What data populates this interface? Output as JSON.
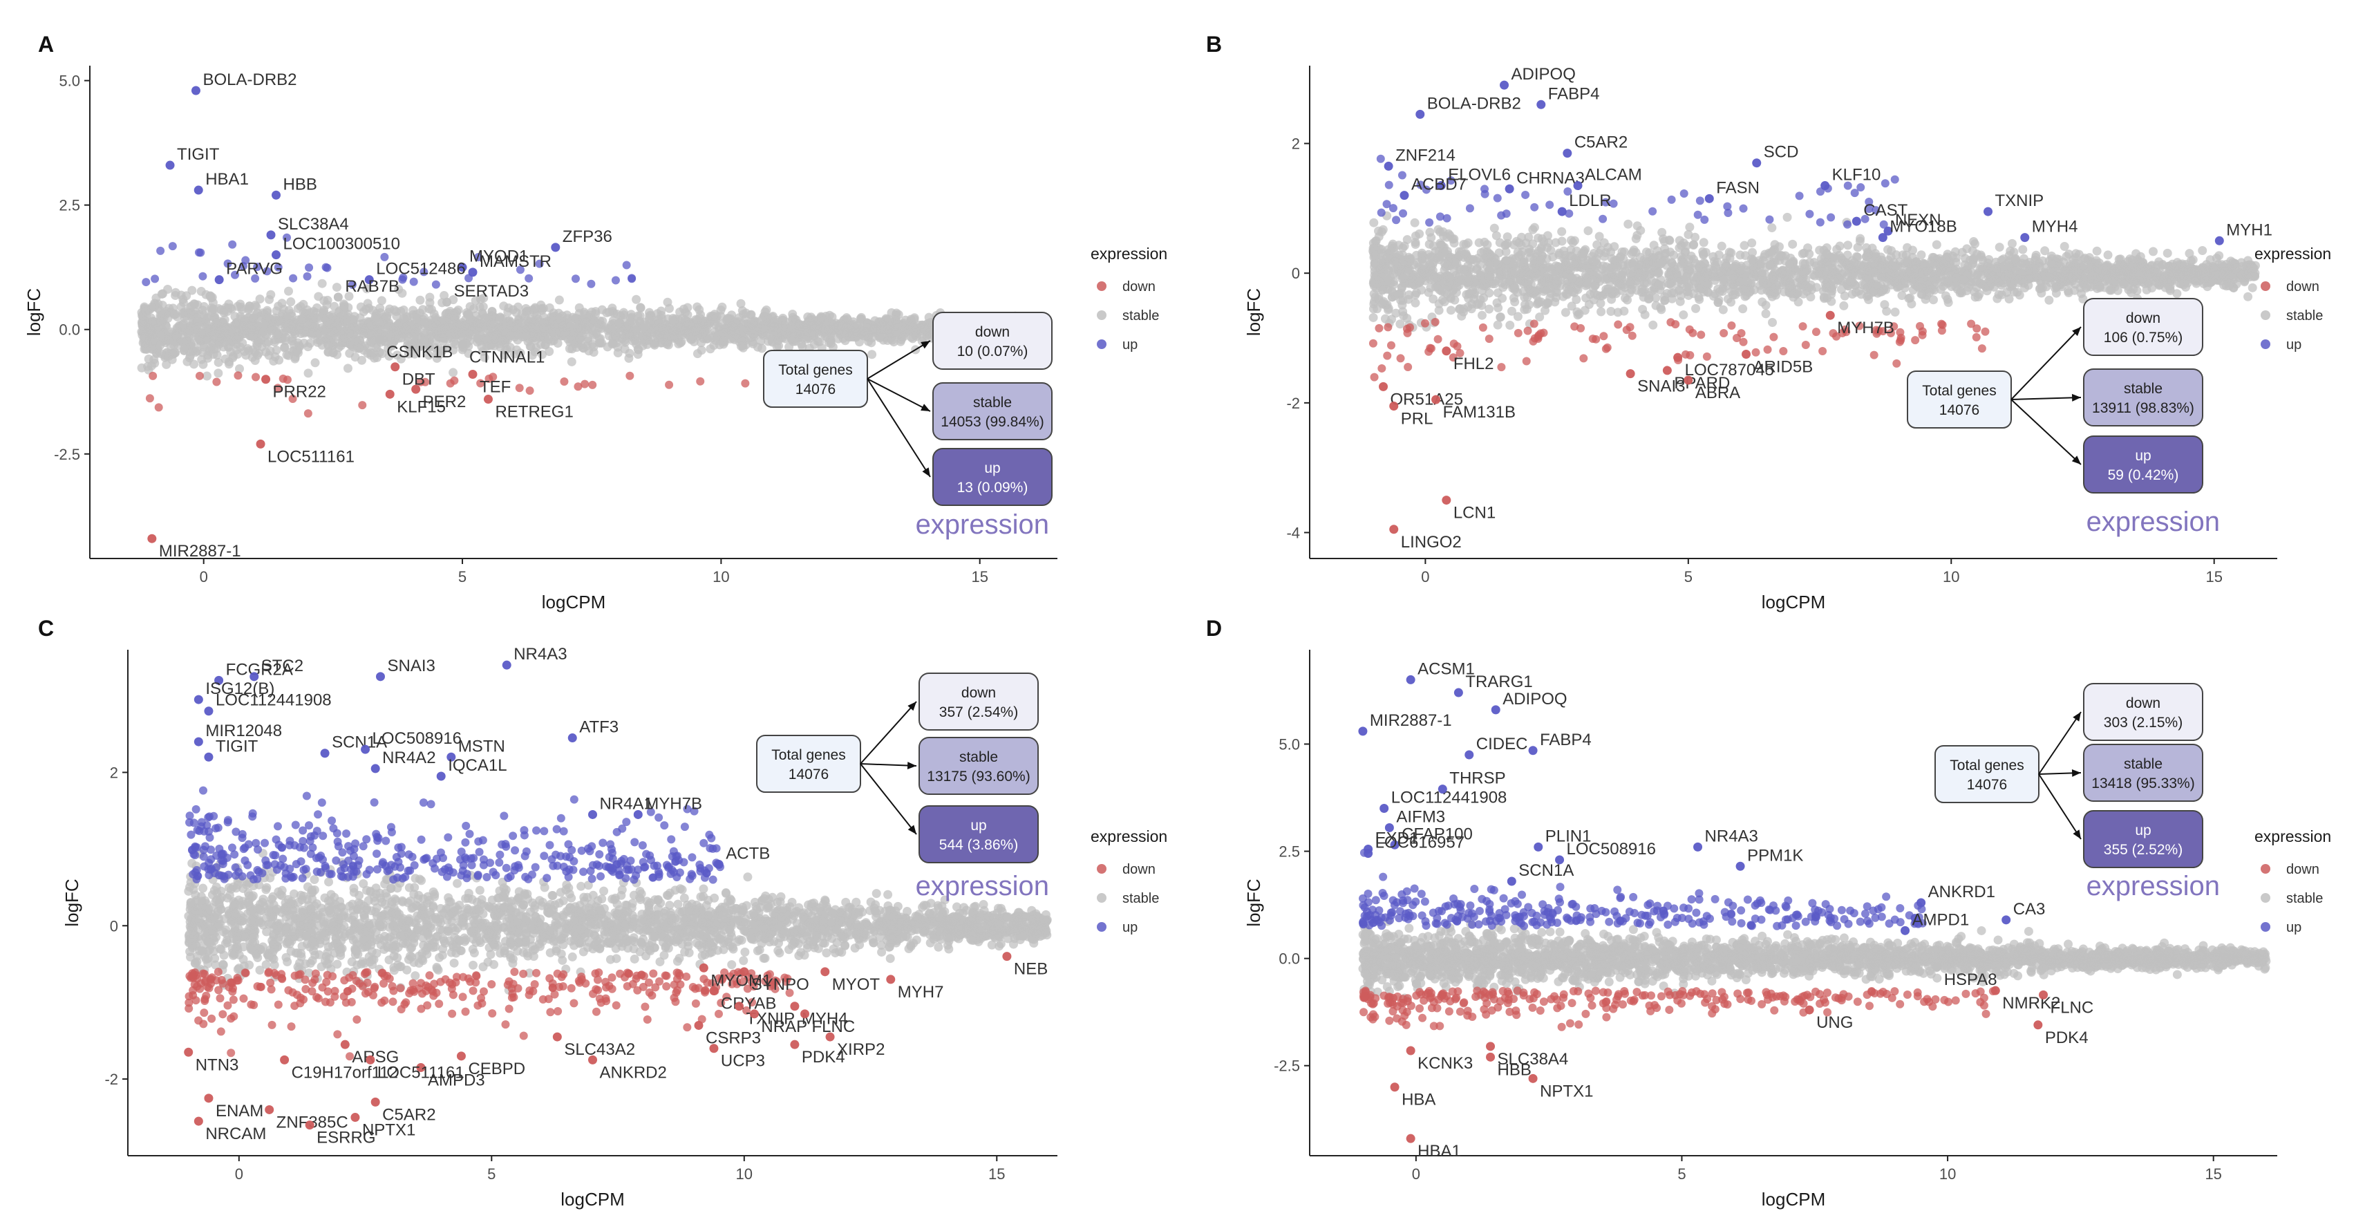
{
  "chart_data": [
    {
      "panel": "A",
      "type": "scatter",
      "xlabel": "logCPM",
      "ylabel": "logFC",
      "xticks": [
        0,
        5,
        10,
        15
      ],
      "yticks": [
        -2.5,
        0.0,
        2.5,
        5.0
      ],
      "ytick_labels": [
        "-2.5",
        "0.0",
        "2.5",
        "5.0"
      ],
      "xlim": [
        -2.2,
        16.5
      ],
      "ylim": [
        -4.6,
        5.3
      ],
      "cloud": {
        "x_min": -1.2,
        "x_max": 16,
        "up_thr": 0.9,
        "down_thr": -0.9,
        "n_up": 40,
        "n_down": 30
      },
      "genes": [
        {
          "name": "BOLA-DRB2",
          "x": -0.15,
          "y": 4.8,
          "dir": "up"
        },
        {
          "name": "TIGIT",
          "x": -0.65,
          "y": 3.3,
          "dir": "up"
        },
        {
          "name": "HBB",
          "x": 1.4,
          "y": 2.7,
          "dir": "up"
        },
        {
          "name": "HBA1",
          "x": -0.1,
          "y": 2.8,
          "dir": "up"
        },
        {
          "name": "SLC38A4",
          "x": 1.3,
          "y": 1.9,
          "dir": "up"
        },
        {
          "name": "LOC100300510",
          "x": 1.4,
          "y": 1.5,
          "dir": "up"
        },
        {
          "name": "MYOD1",
          "x": 5.0,
          "y": 1.25,
          "dir": "up"
        },
        {
          "name": "ZFP36",
          "x": 6.8,
          "y": 1.65,
          "dir": "up"
        },
        {
          "name": "PARVG",
          "x": 0.3,
          "y": 1.0,
          "dir": "up"
        },
        {
          "name": "LOC512486",
          "x": 3.2,
          "y": 1.0,
          "dir": "up"
        },
        {
          "name": "MAMSTR",
          "x": 5.2,
          "y": 1.15,
          "dir": "up"
        },
        {
          "name": "RAB7B",
          "x": 2.6,
          "y": 0.65,
          "dir": "stable"
        },
        {
          "name": "SERTAD3",
          "x": 4.7,
          "y": 0.55,
          "dir": "stable"
        },
        {
          "name": "CSNK1B",
          "x": 3.4,
          "y": -0.2,
          "dir": "stable"
        },
        {
          "name": "CTNNAL1",
          "x": 5.0,
          "y": -0.3,
          "dir": "stable"
        },
        {
          "name": "DBT",
          "x": 3.7,
          "y": -0.75,
          "dir": "down"
        },
        {
          "name": "TEF",
          "x": 5.2,
          "y": -0.9,
          "dir": "down"
        },
        {
          "name": "PRR22",
          "x": 1.2,
          "y": -1.0,
          "dir": "down"
        },
        {
          "name": "KLF15",
          "x": 3.6,
          "y": -1.3,
          "dir": "down"
        },
        {
          "name": "PER2",
          "x": 4.1,
          "y": -1.2,
          "dir": "down"
        },
        {
          "name": "RETREG1",
          "x": 5.5,
          "y": -1.4,
          "dir": "down"
        },
        {
          "name": "LOC511161",
          "x": 1.1,
          "y": -2.3,
          "dir": "down"
        },
        {
          "name": "MIR2887-1",
          "x": -1.0,
          "y": -4.2,
          "dir": "down"
        }
      ],
      "total_label": "Total genes",
      "total": "14076",
      "boxes": [
        {
          "label": "down",
          "value": "10 (0.07%)"
        },
        {
          "label": "stable",
          "value": "14053 (99.84%)"
        },
        {
          "label": "up",
          "value": "13 (0.09%)"
        }
      ],
      "caption": "expression"
    },
    {
      "panel": "B",
      "type": "scatter",
      "xlabel": "logCPM",
      "ylabel": "logFC",
      "xticks": [
        0,
        5,
        10,
        15
      ],
      "yticks": [
        -4,
        -2,
        0,
        2
      ],
      "ytick_labels": [
        "-4",
        "-2",
        "0",
        "2"
      ],
      "xlim": [
        -2.2,
        16.2
      ],
      "ylim": [
        -4.4,
        3.2
      ],
      "cloud": {
        "x_min": -1.0,
        "x_max": 15.8,
        "up_thr": 0.75,
        "down_thr": -0.75,
        "n_up": 55,
        "n_down": 100
      },
      "genes": [
        {
          "name": "ADIPOQ",
          "x": 1.5,
          "y": 2.9,
          "dir": "up"
        },
        {
          "name": "BOLA-DRB2",
          "x": -0.1,
          "y": 2.45,
          "dir": "up"
        },
        {
          "name": "FABP4",
          "x": 2.2,
          "y": 2.6,
          "dir": "up"
        },
        {
          "name": "C5AR2",
          "x": 2.7,
          "y": 1.85,
          "dir": "up"
        },
        {
          "name": "ZNF214",
          "x": -0.7,
          "y": 1.65,
          "dir": "up"
        },
        {
          "name": "ELOVL6",
          "x": 0.3,
          "y": 1.35,
          "dir": "up"
        },
        {
          "name": "CHRNA3",
          "x": 1.6,
          "y": 1.3,
          "dir": "up"
        },
        {
          "name": "ACBD7",
          "x": -0.4,
          "y": 1.2,
          "dir": "up"
        },
        {
          "name": "ALCAM",
          "x": 2.9,
          "y": 1.35,
          "dir": "up"
        },
        {
          "name": "SCD",
          "x": 6.3,
          "y": 1.7,
          "dir": "up"
        },
        {
          "name": "FASN",
          "x": 5.4,
          "y": 1.15,
          "dir": "up"
        },
        {
          "name": "KLF10",
          "x": 7.6,
          "y": 1.35,
          "dir": "up"
        },
        {
          "name": "LDLR",
          "x": 2.6,
          "y": 0.95,
          "dir": "up"
        },
        {
          "name": "CAST",
          "x": 8.2,
          "y": 0.8,
          "dir": "up"
        },
        {
          "name": "NEXN",
          "x": 8.8,
          "y": 0.65,
          "dir": "up"
        },
        {
          "name": "TXNIP",
          "x": 10.7,
          "y": 0.95,
          "dir": "up"
        },
        {
          "name": "MYO18B",
          "x": 8.7,
          "y": 0.55,
          "dir": "up"
        },
        {
          "name": "MYH4",
          "x": 11.4,
          "y": 0.55,
          "dir": "up"
        },
        {
          "name": "MYH1",
          "x": 15.1,
          "y": 0.5,
          "dir": "up"
        },
        {
          "name": "MYH7B",
          "x": 7.7,
          "y": -0.65,
          "dir": "down"
        },
        {
          "name": "FHL2",
          "x": 0.4,
          "y": -1.2,
          "dir": "down"
        },
        {
          "name": "LOC787045",
          "x": 4.8,
          "y": -1.3,
          "dir": "down"
        },
        {
          "name": "ARID5B",
          "x": 6.1,
          "y": -1.25,
          "dir": "down"
        },
        {
          "name": "SNAI3",
          "x": 3.9,
          "y": -1.55,
          "dir": "down"
        },
        {
          "name": "PPARD",
          "x": 4.6,
          "y": -1.5,
          "dir": "down"
        },
        {
          "name": "ABRA",
          "x": 5.0,
          "y": -1.65,
          "dir": "down"
        },
        {
          "name": "OR51A25",
          "x": -0.8,
          "y": -1.75,
          "dir": "down"
        },
        {
          "name": "FAM131B",
          "x": 0.2,
          "y": -1.95,
          "dir": "down"
        },
        {
          "name": "PRL",
          "x": -0.6,
          "y": -2.05,
          "dir": "down"
        },
        {
          "name": "LCN1",
          "x": 0.4,
          "y": -3.5,
          "dir": "down"
        },
        {
          "name": "LINGO2",
          "x": -0.6,
          "y": -3.95,
          "dir": "down"
        }
      ],
      "total_label": "Total genes",
      "total": "14076",
      "boxes": [
        {
          "label": "down",
          "value": "106 (0.75%)"
        },
        {
          "label": "stable",
          "value": "13911 (98.83%)"
        },
        {
          "label": "up",
          "value": "59 (0.42%)"
        }
      ],
      "caption": "expression"
    },
    {
      "panel": "C",
      "type": "scatter",
      "xlabel": "logCPM",
      "ylabel": "logFC",
      "xticks": [
        0,
        5,
        10,
        15
      ],
      "yticks": [
        -2,
        0,
        2
      ],
      "ytick_labels": [
        "-2",
        "0",
        "2"
      ],
      "xlim": [
        -2.2,
        16.2
      ],
      "ylim": [
        -3.0,
        3.6
      ],
      "cloud": {
        "x_min": -1.0,
        "x_max": 16,
        "up_thr": 0.6,
        "down_thr": -0.6,
        "n_up": 400,
        "n_down": 330
      },
      "genes": [
        {
          "name": "FCGR2A",
          "x": -0.4,
          "y": 3.2,
          "dir": "up"
        },
        {
          "name": "STC2",
          "x": 0.3,
          "y": 3.25,
          "dir": "up"
        },
        {
          "name": "SNAI3",
          "x": 2.8,
          "y": 3.25,
          "dir": "up"
        },
        {
          "name": "NR4A3",
          "x": 5.3,
          "y": 3.4,
          "dir": "up"
        },
        {
          "name": "ISG12(B)",
          "x": -0.8,
          "y": 2.95,
          "dir": "up"
        },
        {
          "name": "LOC112441908",
          "x": -0.6,
          "y": 2.8,
          "dir": "up"
        },
        {
          "name": "MIR12048",
          "x": -0.8,
          "y": 2.4,
          "dir": "up"
        },
        {
          "name": "TIGIT",
          "x": -0.6,
          "y": 2.2,
          "dir": "up"
        },
        {
          "name": "NR4A2",
          "x": 2.7,
          "y": 2.05,
          "dir": "up"
        },
        {
          "name": "ATF3",
          "x": 6.6,
          "y": 2.45,
          "dir": "up"
        },
        {
          "name": "SCN1A",
          "x": 1.7,
          "y": 2.25,
          "dir": "up"
        },
        {
          "name": "LOC508916",
          "x": 2.5,
          "y": 2.3,
          "dir": "up"
        },
        {
          "name": "MSTN",
          "x": 4.2,
          "y": 2.2,
          "dir": "up"
        },
        {
          "name": "IQCA1L",
          "x": 4.0,
          "y": 1.95,
          "dir": "up"
        },
        {
          "name": "MYH7B",
          "x": 7.9,
          "y": 1.45,
          "dir": "up"
        },
        {
          "name": "NR4A1",
          "x": 7.0,
          "y": 1.45,
          "dir": "up"
        },
        {
          "name": "ACTB",
          "x": 9.5,
          "y": 0.8,
          "dir": "up"
        },
        {
          "name": "MYOM1",
          "x": 9.2,
          "y": -0.55,
          "dir": "down"
        },
        {
          "name": "SYNPO",
          "x": 10.0,
          "y": -0.6,
          "dir": "down"
        },
        {
          "name": "NEB",
          "x": 15.2,
          "y": -0.4,
          "dir": "down"
        },
        {
          "name": "MYOT",
          "x": 11.6,
          "y": -0.6,
          "dir": "down"
        },
        {
          "name": "CRYAB",
          "x": 9.4,
          "y": -0.85,
          "dir": "down"
        },
        {
          "name": "TXNIP",
          "x": 9.9,
          "y": -1.05,
          "dir": "down"
        },
        {
          "name": "MYH7",
          "x": 12.9,
          "y": -0.7,
          "dir": "down"
        },
        {
          "name": "MYH4",
          "x": 11.0,
          "y": -1.05,
          "dir": "down"
        },
        {
          "name": "FLNC",
          "x": 11.2,
          "y": -1.15,
          "dir": "down"
        },
        {
          "name": "NRAP",
          "x": 10.2,
          "y": -1.15,
          "dir": "down"
        },
        {
          "name": "CSRP3",
          "x": 9.1,
          "y": -1.3,
          "dir": "down"
        },
        {
          "name": "XIRP2",
          "x": 11.7,
          "y": -1.45,
          "dir": "down"
        },
        {
          "name": "PDK4",
          "x": 11.0,
          "y": -1.55,
          "dir": "down"
        },
        {
          "name": "UCP3",
          "x": 9.4,
          "y": -1.6,
          "dir": "down"
        },
        {
          "name": "SLC43A2",
          "x": 6.3,
          "y": -1.45,
          "dir": "down"
        },
        {
          "name": "ANKRD2",
          "x": 7.0,
          "y": -1.75,
          "dir": "down"
        },
        {
          "name": "ARSG",
          "x": 2.1,
          "y": -1.55,
          "dir": "down"
        },
        {
          "name": "CEBPD",
          "x": 4.4,
          "y": -1.7,
          "dir": "down"
        },
        {
          "name": "AMPD3",
          "x": 3.6,
          "y": -1.85,
          "dir": "down"
        },
        {
          "name": "LOC511161",
          "x": 2.6,
          "y": -1.75,
          "dir": "down"
        },
        {
          "name": "C5AR2",
          "x": 2.7,
          "y": -2.3,
          "dir": "down"
        },
        {
          "name": "NPTX1",
          "x": 2.3,
          "y": -2.5,
          "dir": "down"
        },
        {
          "name": "NTN3",
          "x": -1.0,
          "y": -1.65,
          "dir": "down"
        },
        {
          "name": "C19H17orf112",
          "x": 0.9,
          "y": -1.75,
          "dir": "down"
        },
        {
          "name": "ENAM",
          "x": -0.6,
          "y": -2.25,
          "dir": "down"
        },
        {
          "name": "NRCAM",
          "x": -0.8,
          "y": -2.55,
          "dir": "down"
        },
        {
          "name": "ZNF385C",
          "x": 0.6,
          "y": -2.4,
          "dir": "down"
        },
        {
          "name": "ESRRG",
          "x": 1.4,
          "y": -2.6,
          "dir": "down"
        }
      ],
      "total_label": "Total genes",
      "total": "14076",
      "boxes": [
        {
          "label": "down",
          "value": "357 (2.54%)"
        },
        {
          "label": "stable",
          "value": "13175 (93.60%)"
        },
        {
          "label": "up",
          "value": "544 (3.86%)"
        }
      ],
      "caption": "expression"
    },
    {
      "panel": "D",
      "type": "scatter",
      "xlabel": "logCPM",
      "ylabel": "logFC",
      "xticks": [
        0,
        5,
        10,
        15
      ],
      "yticks": [
        -2.5,
        0.0,
        2.5,
        5.0
      ],
      "ytick_labels": [
        "-2.5",
        "0.0",
        "2.5",
        "5.0"
      ],
      "xlim": [
        -2.0,
        16.2
      ],
      "ylim": [
        -4.6,
        7.2
      ],
      "cloud": {
        "x_min": -1.0,
        "x_max": 16,
        "up_thr": 0.75,
        "down_thr": -0.75,
        "n_up": 300,
        "n_down": 260
      },
      "genes": [
        {
          "name": "ACSM1",
          "x": -0.1,
          "y": 6.5,
          "dir": "up"
        },
        {
          "name": "TRARG1",
          "x": 0.8,
          "y": 6.2,
          "dir": "up"
        },
        {
          "name": "ADIPOQ",
          "x": 1.5,
          "y": 5.8,
          "dir": "up"
        },
        {
          "name": "MIR2887-1",
          "x": -1.0,
          "y": 5.3,
          "dir": "up"
        },
        {
          "name": "FABP4",
          "x": 2.2,
          "y": 4.85,
          "dir": "up"
        },
        {
          "name": "CIDEC",
          "x": 1.0,
          "y": 4.75,
          "dir": "up"
        },
        {
          "name": "LOC112441908",
          "x": -0.6,
          "y": 3.5,
          "dir": "up"
        },
        {
          "name": "THRSP",
          "x": 0.5,
          "y": 3.95,
          "dir": "up"
        },
        {
          "name": "AIFM3",
          "x": -0.5,
          "y": 3.05,
          "dir": "up"
        },
        {
          "name": "EXD1",
          "x": -0.9,
          "y": 2.55,
          "dir": "up"
        },
        {
          "name": "CFAP100",
          "x": -0.4,
          "y": 2.65,
          "dir": "up"
        },
        {
          "name": "PLIN1",
          "x": 2.3,
          "y": 2.6,
          "dir": "up"
        },
        {
          "name": "NR4A3",
          "x": 5.3,
          "y": 2.6,
          "dir": "up"
        },
        {
          "name": "LOC508916",
          "x": 2.7,
          "y": 2.3,
          "dir": "up"
        },
        {
          "name": "PPM1K",
          "x": 6.1,
          "y": 2.15,
          "dir": "up"
        },
        {
          "name": "LOC616957",
          "x": -0.9,
          "y": 2.45,
          "dir": "up"
        },
        {
          "name": "SCN1A",
          "x": 1.8,
          "y": 1.8,
          "dir": "up"
        },
        {
          "name": "ANKRD1",
          "x": 9.5,
          "y": 1.3,
          "dir": "up"
        },
        {
          "name": "AMPD1",
          "x": 9.2,
          "y": 0.65,
          "dir": "up"
        },
        {
          "name": "CA3",
          "x": 11.1,
          "y": 0.9,
          "dir": "up"
        },
        {
          "name": "HSPA8",
          "x": 9.8,
          "y": -0.2,
          "dir": "stable"
        },
        {
          "name": "NMRK2",
          "x": 10.9,
          "y": -0.75,
          "dir": "down"
        },
        {
          "name": "FLNC",
          "x": 11.8,
          "y": -0.85,
          "dir": "down"
        },
        {
          "name": "UNG",
          "x": 7.4,
          "y": -1.2,
          "dir": "down"
        },
        {
          "name": "PDK4",
          "x": 11.7,
          "y": -1.55,
          "dir": "down"
        },
        {
          "name": "KCNK3",
          "x": -0.1,
          "y": -2.15,
          "dir": "down"
        },
        {
          "name": "SLC38A4",
          "x": 1.4,
          "y": -2.05,
          "dir": "down"
        },
        {
          "name": "HBB",
          "x": 1.4,
          "y": -2.3,
          "dir": "down"
        },
        {
          "name": "NPTX1",
          "x": 2.2,
          "y": -2.8,
          "dir": "down"
        },
        {
          "name": "HBA",
          "x": -0.4,
          "y": -3.0,
          "dir": "down"
        },
        {
          "name": "HBA1",
          "x": -0.1,
          "y": -4.2,
          "dir": "down"
        }
      ],
      "total_label": "Total genes",
      "total": "14076",
      "boxes": [
        {
          "label": "down",
          "value": "303 (2.15%)"
        },
        {
          "label": "stable",
          "value": "13418 (95.33%)"
        },
        {
          "label": "up",
          "value": "355 (2.52%)"
        }
      ],
      "caption": "expression"
    }
  ],
  "legend": {
    "title": "expression",
    "items": [
      {
        "label": "down",
        "color": "#cd5c5c"
      },
      {
        "label": "stable",
        "color": "#c0c0c0"
      },
      {
        "label": "up",
        "color": "#5b5bc7"
      }
    ]
  },
  "colors": {
    "down": "#cd5c5c",
    "stable": "#c0c0c0",
    "up": "#5b5bc7",
    "box_down": "#eeeef7",
    "box_stable": "#b7b6d9",
    "box_up": "#6f66b0",
    "box_total": "#eef3fb",
    "caption": "#8275be"
  }
}
